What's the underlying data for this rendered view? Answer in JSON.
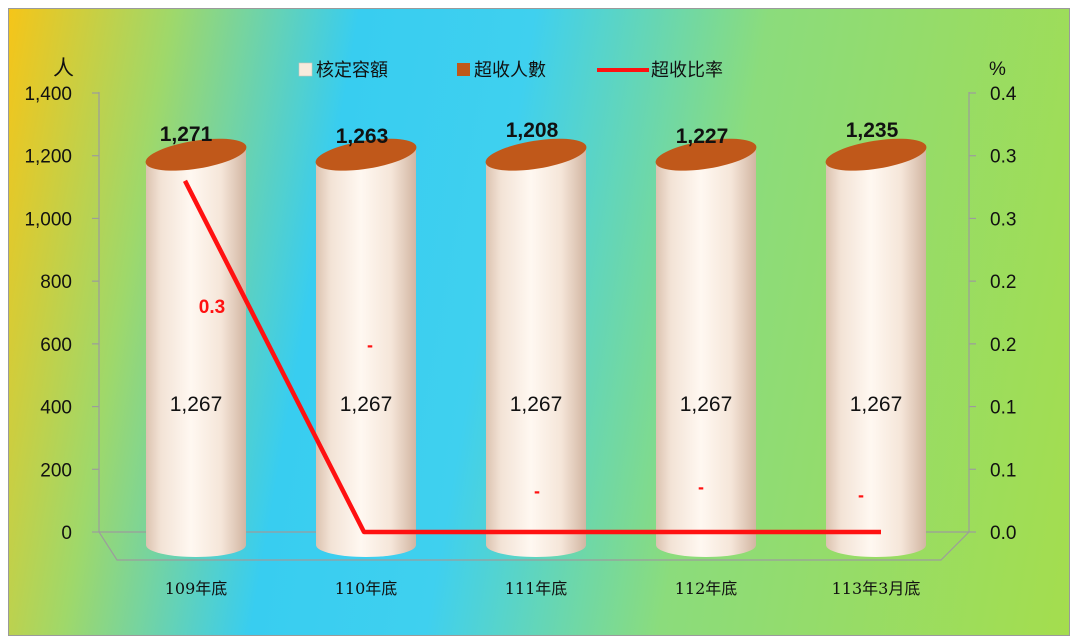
{
  "chart_data": {
    "type": "bar",
    "categories": [
      "109年底",
      "110年底",
      "111年底",
      "112年底",
      "113年3月底"
    ],
    "series": [
      {
        "name": "核定容額",
        "kind": "cylinder",
        "axis": "left",
        "values": [
          1267,
          1267,
          1267,
          1267,
          1267
        ],
        "color": "#f8ebdd"
      },
      {
        "name": "超收人數",
        "kind": "cylinder",
        "axis": "left",
        "values": [
          0,
          0,
          0,
          0,
          0
        ],
        "value_labels": [
          "0.3",
          "-",
          "-",
          "-",
          "-"
        ],
        "color": "#c0581a"
      },
      {
        "name": "超收比率",
        "kind": "line",
        "axis": "right",
        "values": [
          0.32,
          0,
          0,
          0,
          0
        ],
        "color": "#ff1111"
      }
    ],
    "totals": [
      1271,
      1263,
      1208,
      1227,
      1235
    ],
    "total_labels": [
      "1,271",
      "1,263",
      "1,208",
      "1,227",
      "1,235"
    ],
    "capacity_labels": [
      "1,267",
      "1,267",
      "1,267",
      "1,267",
      "1,267"
    ],
    "left_axis": {
      "unit": "人",
      "min": 0,
      "max": 1400,
      "ticks": [
        "0",
        "200",
        "400",
        "600",
        "800",
        "1,000",
        "1,200",
        "1,400"
      ]
    },
    "right_axis": {
      "unit": "%",
      "min": 0,
      "max": 0.4,
      "ticks": [
        "0.0",
        "0.1",
        "0.1",
        "0.2",
        "0.2",
        "0.3",
        "0.3",
        "0.4"
      ]
    },
    "legend_placement": "top-center",
    "grid": false
  }
}
